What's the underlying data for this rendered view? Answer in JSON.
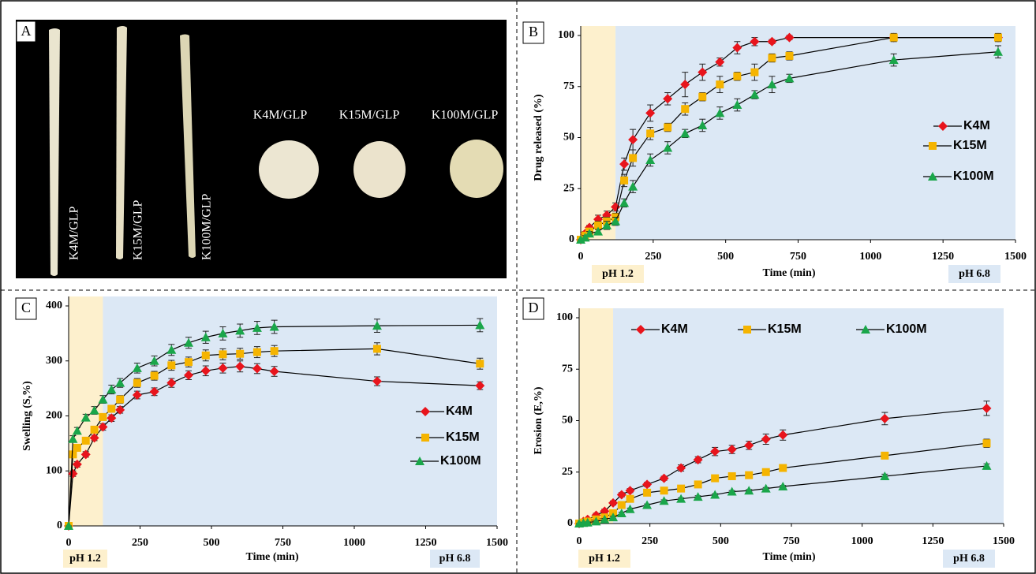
{
  "photo_panel": {
    "label": "A",
    "rod_labels": [
      "K4M/GLP",
      "K15M/GLP",
      "K100M/GLP"
    ],
    "tablet_labels": [
      "K4M/GLP",
      "K15M/GLP",
      "K100M/GLP"
    ]
  },
  "chart_data": [
    {
      "type": "line",
      "panel_label": "B",
      "xlabel": "Time (min)",
      "ylabel": "Drug released (%)",
      "x": [
        0,
        15,
        30,
        60,
        90,
        120,
        150,
        180,
        240,
        300,
        360,
        420,
        480,
        540,
        600,
        660,
        720,
        1080,
        1440
      ],
      "series": [
        {
          "name": "K4M",
          "color": "#e8141c",
          "marker": "diamond",
          "values": [
            0,
            3,
            6,
            10,
            12,
            16,
            37,
            49,
            62,
            69,
            76,
            82,
            87,
            94,
            97,
            97,
            99,
            99,
            99
          ],
          "errors": [
            0,
            1,
            1,
            2,
            2,
            2,
            3,
            5,
            4,
            3,
            6,
            4,
            2,
            3,
            2,
            1,
            1,
            1,
            1
          ]
        },
        {
          "name": "K15M",
          "color": "#f5b400",
          "marker": "square",
          "values": [
            0,
            2,
            4,
            7,
            9,
            11,
            29,
            40,
            52,
            55,
            64,
            70,
            76,
            80,
            82,
            89,
            90,
            99,
            99
          ],
          "errors": [
            0,
            1,
            1,
            2,
            2,
            2,
            3,
            4,
            3,
            2,
            3,
            2,
            4,
            2,
            4,
            2,
            2,
            2,
            2
          ]
        },
        {
          "name": "K100M",
          "color": "#1aa64a",
          "marker": "triangle",
          "values": [
            0,
            1,
            3,
            4,
            7,
            9,
            18,
            26,
            39,
            45,
            52,
            56,
            62,
            66,
            71,
            76,
            79,
            88,
            92
          ],
          "errors": [
            0,
            1,
            1,
            1,
            2,
            2,
            2,
            3,
            3,
            3,
            2,
            3,
            3,
            3,
            2,
            4,
            2,
            3,
            3
          ]
        }
      ],
      "xlim": [
        0,
        1500
      ],
      "xticks": [
        0,
        250,
        500,
        750,
        1000,
        1250,
        1500
      ],
      "ylim": [
        0,
        100
      ],
      "yticks": [
        0,
        25,
        50,
        75,
        100
      ],
      "grid": false,
      "legend_position": "right",
      "phases": [
        {
          "label": "pH 1.2",
          "xrange": [
            0,
            120
          ],
          "color": "#fdf0cd"
        },
        {
          "label": "pH 6.8",
          "xrange": [
            120,
            1500
          ],
          "color": "#dce8f5"
        }
      ]
    },
    {
      "type": "line",
      "panel_label": "C",
      "xlabel": "Time (min)",
      "ylabel": "Swelling (S,%)",
      "x": [
        0,
        15,
        30,
        60,
        90,
        120,
        150,
        180,
        240,
        300,
        360,
        420,
        480,
        540,
        600,
        660,
        720,
        1080,
        1440
      ],
      "series": [
        {
          "name": "K4M",
          "color": "#e8141c",
          "marker": "diamond",
          "values": [
            0,
            95,
            112,
            130,
            160,
            180,
            196,
            211,
            238,
            244,
            260,
            274,
            282,
            287,
            290,
            286,
            281,
            263,
            255
          ],
          "errors": [
            0,
            5,
            5,
            5,
            5,
            6,
            6,
            6,
            7,
            7,
            8,
            8,
            9,
            9,
            10,
            9,
            9,
            8,
            7
          ]
        },
        {
          "name": "K15M",
          "color": "#f5b400",
          "marker": "square",
          "values": [
            0,
            130,
            142,
            155,
            175,
            198,
            213,
            230,
            260,
            273,
            292,
            298,
            310,
            312,
            313,
            316,
            318,
            322,
            295
          ],
          "errors": [
            0,
            5,
            5,
            5,
            6,
            6,
            6,
            7,
            8,
            8,
            9,
            9,
            10,
            10,
            10,
            10,
            10,
            11,
            10
          ]
        },
        {
          "name": "K100M",
          "color": "#1aa64a",
          "marker": "triangle",
          "values": [
            0,
            158,
            173,
            197,
            210,
            230,
            248,
            260,
            287,
            300,
            320,
            333,
            343,
            350,
            355,
            360,
            362,
            364,
            365
          ],
          "errors": [
            0,
            6,
            6,
            6,
            7,
            7,
            8,
            8,
            9,
            9,
            10,
            10,
            11,
            12,
            12,
            12,
            12,
            12,
            12
          ]
        }
      ],
      "xlim": [
        0,
        1500
      ],
      "xticks": [
        0,
        250,
        500,
        750,
        1000,
        1250,
        1500
      ],
      "ylim": [
        0,
        400
      ],
      "yticks": [
        0,
        100,
        200,
        300,
        400
      ],
      "grid": false,
      "legend_position": "right",
      "phases": [
        {
          "label": "pH 1.2",
          "xrange": [
            0,
            120
          ],
          "color": "#fdf0cd"
        },
        {
          "label": "pH 6.8",
          "xrange": [
            120,
            1500
          ],
          "color": "#dce8f5"
        }
      ]
    },
    {
      "type": "line",
      "panel_label": "D",
      "xlabel": "Time (min)",
      "ylabel": "Erosion (E,%)",
      "x": [
        0,
        15,
        30,
        60,
        90,
        120,
        150,
        180,
        240,
        300,
        360,
        420,
        480,
        540,
        600,
        660,
        720,
        1080,
        1440
      ],
      "series": [
        {
          "name": "K4M",
          "color": "#e8141c",
          "marker": "diamond",
          "values": [
            0,
            1,
            2,
            4,
            6,
            10,
            14,
            16,
            19,
            22,
            27,
            31,
            35,
            36,
            38,
            41,
            43,
            51,
            56
          ],
          "errors": [
            0,
            0.5,
            0.5,
            1,
            1,
            1,
            1,
            1,
            1,
            1,
            1.5,
            1.5,
            2,
            2,
            2,
            2.5,
            2.5,
            3,
            3.5
          ]
        },
        {
          "name": "K15M",
          "color": "#f5b400",
          "marker": "square",
          "values": [
            0,
            0.5,
            1,
            2,
            3,
            5,
            9,
            12,
            15,
            16,
            17,
            19,
            22,
            23,
            23.5,
            25,
            27,
            33,
            39
          ],
          "errors": [
            0,
            0.5,
            0.5,
            0.5,
            0.5,
            1,
            1,
            1,
            1,
            1,
            1,
            1,
            1,
            1,
            1,
            1,
            1,
            1.5,
            2
          ]
        },
        {
          "name": "K100M",
          "color": "#1aa64a",
          "marker": "triangle",
          "values": [
            0,
            0.3,
            0.5,
            1,
            2,
            3,
            5,
            7,
            9,
            11,
            12,
            13,
            14,
            15.5,
            16,
            17,
            18,
            23,
            28
          ],
          "errors": [
            0,
            0.3,
            0.3,
            0.5,
            0.5,
            0.5,
            0.5,
            0.5,
            0.5,
            0.5,
            0.5,
            0.5,
            0.5,
            0.5,
            0.5,
            0.5,
            0.5,
            1,
            1
          ]
        }
      ],
      "xlim": [
        0,
        1500
      ],
      "xticks": [
        0,
        250,
        500,
        750,
        1000,
        1250,
        1500
      ],
      "ylim": [
        0,
        100
      ],
      "yticks": [
        0,
        25,
        50,
        75,
        100
      ],
      "grid": false,
      "legend_position": "top",
      "phases": [
        {
          "label": "pH 1.2",
          "xrange": [
            0,
            120
          ],
          "color": "#fdf0cd"
        },
        {
          "label": "pH 6.8",
          "xrange": [
            120,
            1500
          ],
          "color": "#dce8f5"
        }
      ]
    }
  ]
}
